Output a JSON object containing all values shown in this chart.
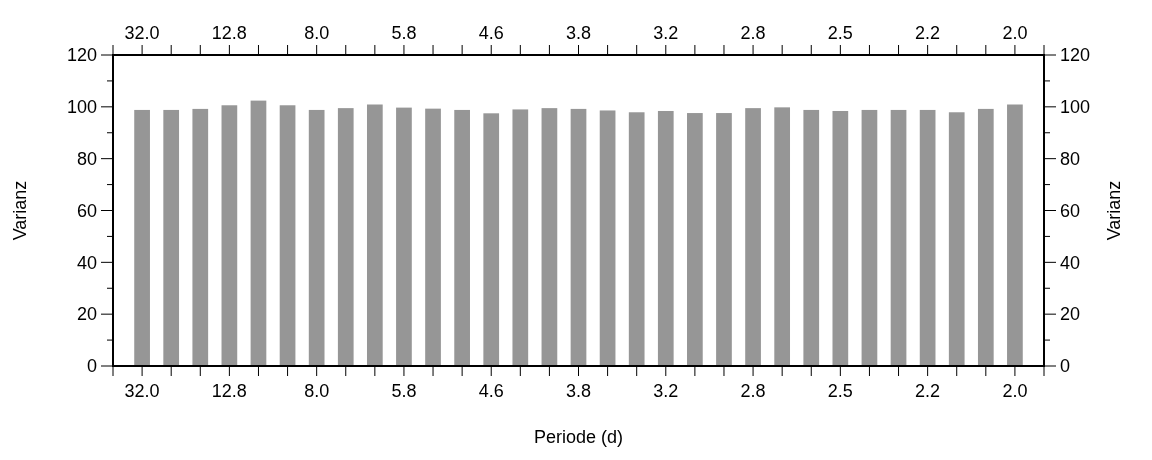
{
  "chart_data": {
    "type": "bar",
    "xlabel": "Periode (d)",
    "ylabel": "Varianz",
    "y2label": "Varianz",
    "categories": [
      "32.0",
      null,
      null,
      "12.8",
      null,
      null,
      "8.0",
      null,
      null,
      "5.8",
      null,
      null,
      "4.6",
      null,
      null,
      "3.8",
      null,
      null,
      "3.2",
      null,
      null,
      "2.8",
      null,
      null,
      "2.5",
      null,
      null,
      "2.2",
      null,
      null,
      "2.0"
    ],
    "values": [
      98.8,
      98.8,
      99.2,
      100.6,
      102.4,
      100.6,
      98.8,
      99.5,
      100.9,
      99.7,
      99.3,
      98.8,
      97.5,
      99.0,
      99.5,
      99.2,
      98.6,
      97.9,
      98.4,
      97.6,
      97.6,
      99.5,
      99.8,
      98.8,
      98.4,
      98.8,
      98.8,
      98.8,
      97.9,
      99.2,
      100.9
    ],
    "color": "#969696",
    "ylim": [
      0,
      120
    ],
    "yticks": [
      0,
      20,
      40,
      60,
      80,
      100,
      120
    ],
    "y2lim": [
      0,
      120
    ],
    "y2ticks": [
      0,
      20,
      40,
      60,
      80,
      100,
      120
    ],
    "grid": false
  }
}
